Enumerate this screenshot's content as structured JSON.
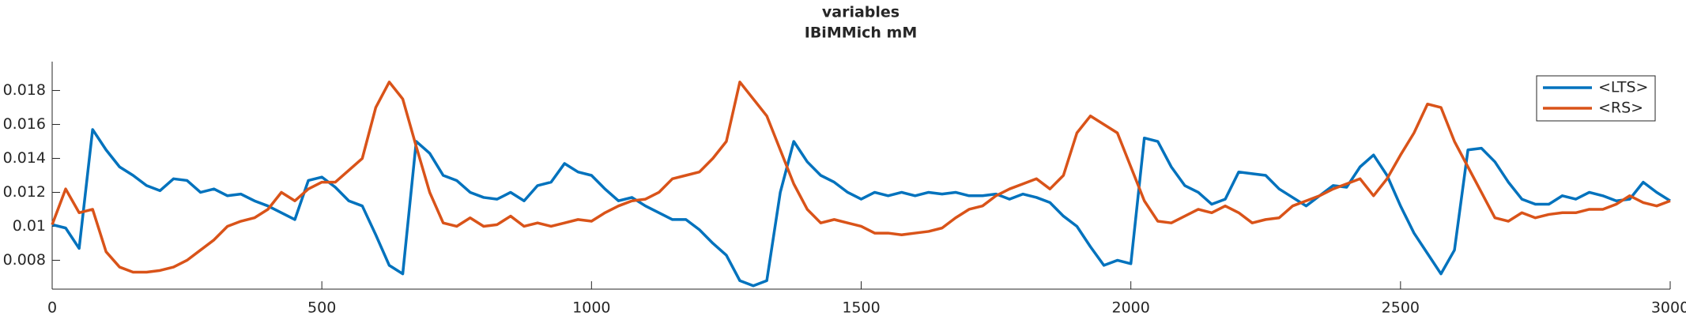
{
  "chart_data": {
    "type": "line",
    "title": "variables",
    "subtitle": "IBiMMich mM",
    "x": [
      0,
      25,
      50,
      75,
      100,
      125,
      150,
      175,
      200,
      225,
      250,
      275,
      300,
      325,
      350,
      375,
      400,
      425,
      450,
      475,
      500,
      525,
      550,
      575,
      600,
      625,
      650,
      675,
      700,
      725,
      750,
      775,
      800,
      825,
      850,
      875,
      900,
      925,
      950,
      975,
      1000,
      1025,
      1050,
      1075,
      1100,
      1125,
      1150,
      1175,
      1200,
      1225,
      1250,
      1275,
      1300,
      1325,
      1350,
      1375,
      1400,
      1425,
      1450,
      1475,
      1500,
      1525,
      1550,
      1575,
      1600,
      1625,
      1650,
      1675,
      1700,
      1725,
      1750,
      1775,
      1800,
      1825,
      1850,
      1875,
      1900,
      1925,
      1950,
      1975,
      2000,
      2025,
      2050,
      2075,
      2100,
      2125,
      2150,
      2175,
      2200,
      2225,
      2250,
      2275,
      2300,
      2325,
      2350,
      2375,
      2400,
      2425,
      2450,
      2475,
      2500,
      2525,
      2550,
      2575,
      2600,
      2625,
      2650,
      2675,
      2700,
      2725,
      2750,
      2775,
      2800,
      2825,
      2850,
      2875,
      2900,
      2925,
      2950,
      2975,
      3000
    ],
    "series": [
      {
        "name": "<LTS>",
        "color": "#0072bd",
        "values": [
          0.0101,
          0.0099,
          0.0087,
          0.0157,
          0.0145,
          0.0135,
          0.013,
          0.0124,
          0.0121,
          0.0128,
          0.0127,
          0.012,
          0.0122,
          0.0118,
          0.0119,
          0.0115,
          0.0112,
          0.0108,
          0.0104,
          0.0127,
          0.0129,
          0.0123,
          0.0115,
          0.0112,
          0.0095,
          0.0077,
          0.0072,
          0.015,
          0.0143,
          0.013,
          0.0127,
          0.012,
          0.0117,
          0.0116,
          0.012,
          0.0115,
          0.0124,
          0.0126,
          0.0137,
          0.0132,
          0.013,
          0.0122,
          0.0115,
          0.0117,
          0.0112,
          0.0108,
          0.0104,
          0.0104,
          0.0098,
          0.009,
          0.0083,
          0.0068,
          0.0065,
          0.0068,
          0.012,
          0.015,
          0.0138,
          0.013,
          0.0126,
          0.012,
          0.0116,
          0.012,
          0.0118,
          0.012,
          0.0118,
          0.012,
          0.0119,
          0.012,
          0.0118,
          0.0118,
          0.0119,
          0.0116,
          0.0119,
          0.0117,
          0.0114,
          0.0106,
          0.01,
          0.0088,
          0.0077,
          0.008,
          0.0078,
          0.0152,
          0.015,
          0.0135,
          0.0124,
          0.012,
          0.0113,
          0.0116,
          0.0132,
          0.0131,
          0.013,
          0.0122,
          0.0117,
          0.0112,
          0.0118,
          0.0124,
          0.0123,
          0.0135,
          0.0142,
          0.013,
          0.0112,
          0.0096,
          0.0084,
          0.0072,
          0.0086,
          0.0145,
          0.0146,
          0.0138,
          0.0126,
          0.0116,
          0.0113,
          0.0113,
          0.0118,
          0.0116,
          0.012,
          0.0118,
          0.0115,
          0.0116,
          0.0126,
          0.012,
          0.0115
        ]
      },
      {
        "name": "<RS>",
        "color": "#d95319",
        "values": [
          0.0101,
          0.0122,
          0.0108,
          0.011,
          0.0085,
          0.0076,
          0.0073,
          0.0073,
          0.0074,
          0.0076,
          0.008,
          0.0086,
          0.0092,
          0.01,
          0.0103,
          0.0105,
          0.011,
          0.012,
          0.0115,
          0.0122,
          0.0126,
          0.0126,
          0.0133,
          0.014,
          0.017,
          0.0185,
          0.0175,
          0.0147,
          0.012,
          0.0102,
          0.01,
          0.0105,
          0.01,
          0.0101,
          0.0106,
          0.01,
          0.0102,
          0.01,
          0.0102,
          0.0104,
          0.0103,
          0.0108,
          0.0112,
          0.0115,
          0.0116,
          0.012,
          0.0128,
          0.013,
          0.0132,
          0.014,
          0.015,
          0.0185,
          0.0175,
          0.0165,
          0.0145,
          0.0125,
          0.011,
          0.0102,
          0.0104,
          0.0102,
          0.01,
          0.0096,
          0.0096,
          0.0095,
          0.0096,
          0.0097,
          0.0099,
          0.0105,
          0.011,
          0.0112,
          0.0118,
          0.0122,
          0.0125,
          0.0128,
          0.0122,
          0.013,
          0.0155,
          0.0165,
          0.016,
          0.0155,
          0.0135,
          0.0115,
          0.0103,
          0.0102,
          0.0106,
          0.011,
          0.0108,
          0.0112,
          0.0108,
          0.0102,
          0.0104,
          0.0105,
          0.0112,
          0.0115,
          0.0118,
          0.0122,
          0.0125,
          0.0128,
          0.0118,
          0.0128,
          0.0142,
          0.0155,
          0.0172,
          0.017,
          0.015,
          0.0135,
          0.012,
          0.0105,
          0.0103,
          0.0108,
          0.0105,
          0.0107,
          0.0108,
          0.0108,
          0.011,
          0.011,
          0.0113,
          0.0118,
          0.0114,
          0.0112,
          0.0115
        ]
      }
    ],
    "xlim": [
      0,
      3000
    ],
    "xticks": [
      0,
      500,
      1000,
      1500,
      2000,
      2500,
      3000
    ],
    "ylim": [
      0.0063,
      0.0197
    ],
    "yticks": [
      0.008,
      0.01,
      0.012,
      0.014,
      0.016,
      0.018
    ],
    "legend": "top-right"
  }
}
